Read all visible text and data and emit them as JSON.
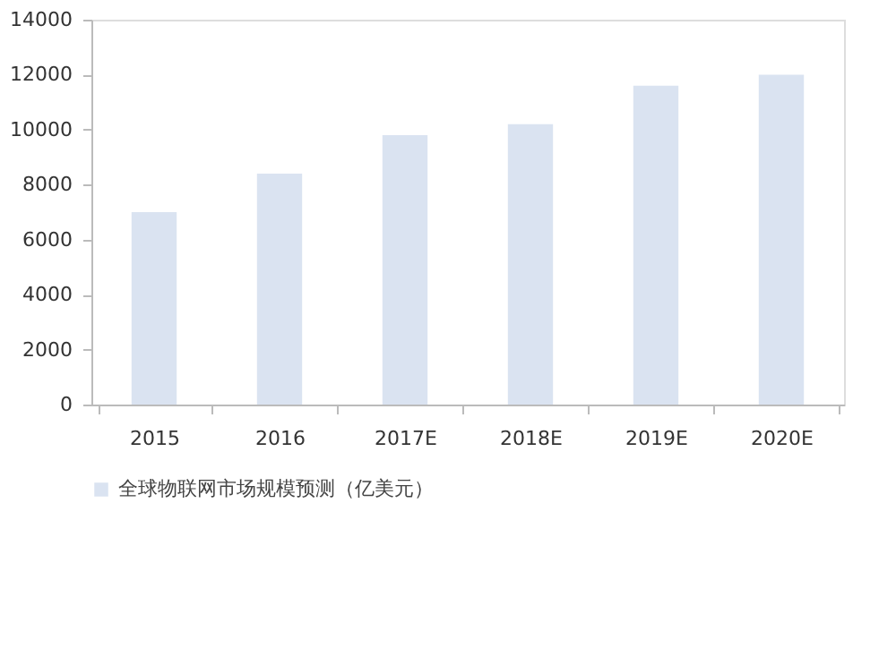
{
  "chart_data": {
    "type": "bar",
    "categories": [
      "2015",
      "2016",
      "2017E",
      "2018E",
      "2019E",
      "2020E"
    ],
    "series": [
      {
        "name": "全球物联网市场规模预测（亿美元）",
        "color": "#dae3f1",
        "values": [
          7000,
          8400,
          9800,
          10200,
          11600,
          12000
        ]
      }
    ],
    "ylim": [
      0,
      14000
    ],
    "yticks": [
      0,
      2000,
      4000,
      6000,
      8000,
      10000,
      12000,
      14000
    ],
    "grid": false,
    "legend": "bottom"
  }
}
